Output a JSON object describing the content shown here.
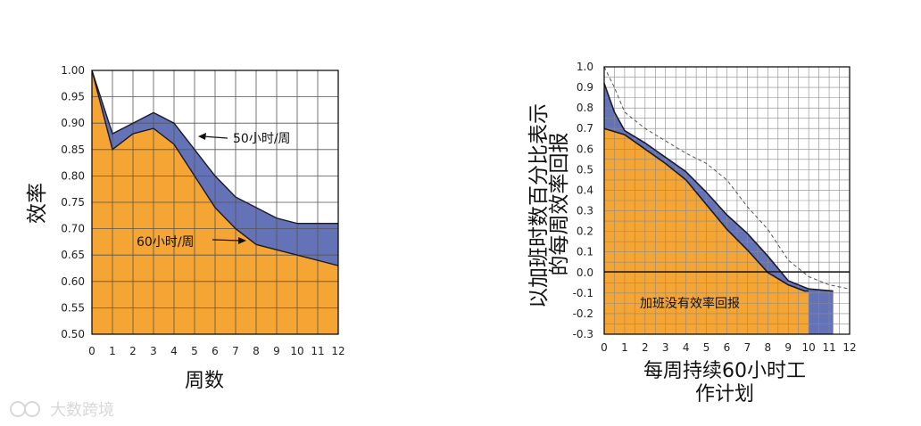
{
  "chart_data": [
    {
      "type": "area",
      "ylabel": "效率",
      "xlabel": "周数",
      "x": [
        0,
        1,
        2,
        3,
        4,
        5,
        6,
        7,
        8,
        9,
        10,
        11,
        12
      ],
      "xlim": [
        0,
        12
      ],
      "ylim": [
        0.5,
        1.0
      ],
      "yticks": [
        "1.00",
        "0.95",
        "0.90",
        "0.85",
        "0.80",
        "0.75",
        "0.70",
        "0.65",
        "0.60",
        "0.55",
        "0.50"
      ],
      "grid": true,
      "series": [
        {
          "name": "50小时/周",
          "color": "#6472b8",
          "values": [
            1.0,
            0.88,
            0.9,
            0.92,
            0.9,
            0.85,
            0.8,
            0.76,
            0.74,
            0.72,
            0.71,
            0.71,
            0.71
          ]
        },
        {
          "name": "60小时/周",
          "color": "#f5a533",
          "values": [
            1.0,
            0.85,
            0.88,
            0.89,
            0.86,
            0.8,
            0.74,
            0.7,
            0.67,
            0.66,
            0.65,
            0.64,
            0.63
          ]
        }
      ],
      "annotations": [
        {
          "text": "50小时/周",
          "series": "50小时/周",
          "at_x": 5
        },
        {
          "text": "60小时/周",
          "series": "60小时/周",
          "at_x": 7
        }
      ]
    },
    {
      "type": "area",
      "ylabel_lines": [
        "以加班时数百分比表示",
        "的每周效率回报"
      ],
      "xlabel_lines": [
        "每周持续60小时工",
        "作计划"
      ],
      "x": [
        0,
        1,
        2,
        3,
        4,
        5,
        6,
        7,
        8,
        9,
        10,
        11,
        12
      ],
      "xlim": [
        0,
        12
      ],
      "ylim": [
        -0.3,
        1.0
      ],
      "yticks": [
        "1.0",
        "0.9",
        "0.8",
        "0.7",
        "0.6",
        "0.5",
        "0.4",
        "0.3",
        "0.2",
        "0.1",
        "0.0",
        "-0.1",
        "-0.2",
        "-0.3"
      ],
      "grid": true,
      "series": [
        {
          "name": "upper",
          "color": "#6472b8",
          "points": [
            [
              0,
              0.92
            ],
            [
              0.5,
              0.78
            ],
            [
              1,
              0.69
            ],
            [
              2,
              0.63
            ],
            [
              3,
              0.56
            ],
            [
              4,
              0.49
            ],
            [
              5,
              0.39
            ],
            [
              6,
              0.28
            ],
            [
              7,
              0.19
            ],
            [
              8,
              0.08
            ],
            [
              9,
              -0.04
            ],
            [
              10,
              -0.08
            ],
            [
              11.2,
              -0.09
            ]
          ]
        },
        {
          "name": "base",
          "color": "#f5a533",
          "points": [
            [
              0,
              0.7
            ],
            [
              1,
              0.67
            ],
            [
              2,
              0.6
            ],
            [
              3,
              0.53
            ],
            [
              4,
              0.45
            ],
            [
              5,
              0.33
            ],
            [
              6,
              0.21
            ],
            [
              7,
              0.11
            ],
            [
              8,
              0.0
            ],
            [
              9,
              -0.06
            ],
            [
              9.8,
              -0.09
            ],
            [
              10,
              -0.09
            ]
          ]
        },
        {
          "name": "dashed",
          "color": "#555555",
          "points": [
            [
              0,
              1.0
            ],
            [
              0.5,
              0.9
            ],
            [
              1,
              0.78
            ],
            [
              2,
              0.7
            ],
            [
              3,
              0.64
            ],
            [
              4,
              0.58
            ],
            [
              5,
              0.53
            ],
            [
              6,
              0.45
            ],
            [
              7,
              0.32
            ],
            [
              8,
              0.21
            ],
            [
              9,
              0.06
            ],
            [
              10,
              -0.02
            ],
            [
              11,
              -0.06
            ],
            [
              12,
              -0.08
            ]
          ]
        }
      ],
      "annotations": [
        {
          "text": "加班没有效率回报"
        }
      ]
    }
  ],
  "watermark": "大数跨境"
}
